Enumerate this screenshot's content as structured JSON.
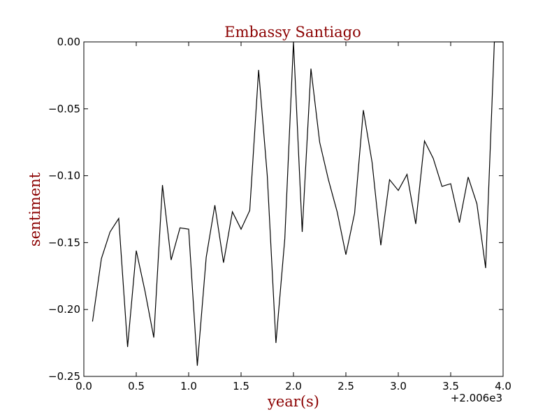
{
  "chart_data": {
    "type": "line",
    "title": "Embassy Santiago",
    "xlabel": "year(s)",
    "ylabel": "sentiment",
    "x_offset_label": "+2.006e3",
    "xlim": [
      0.0,
      4.0
    ],
    "ylim": [
      -0.25,
      0.0
    ],
    "x_ticks": [
      0.0,
      0.5,
      1.0,
      1.5,
      2.0,
      2.5,
      3.0,
      3.5,
      4.0
    ],
    "x_tick_labels": [
      "0.0",
      "0.5",
      "1.0",
      "1.5",
      "2.0",
      "2.5",
      "3.0",
      "3.5",
      "4.0"
    ],
    "y_ticks": [
      0.0,
      -0.05,
      -0.1,
      -0.15,
      -0.2,
      -0.25
    ],
    "y_tick_labels": [
      "0.00",
      "−0.05",
      "−0.10",
      "−0.15",
      "−0.20",
      "−0.25"
    ],
    "grid": false,
    "line_color": "#000000",
    "series": [
      {
        "x": [
          0.083,
          0.167,
          0.25,
          0.333,
          0.417,
          0.5,
          0.583,
          0.667,
          0.75,
          0.833,
          0.917,
          1.0,
          1.083,
          1.167,
          1.25,
          1.333,
          1.417,
          1.5,
          1.583,
          1.667,
          1.75,
          1.833,
          1.917,
          2.0,
          2.083,
          2.167,
          2.25,
          2.333,
          2.417,
          2.5,
          2.583,
          2.667,
          2.75,
          2.833,
          2.917,
          3.0,
          3.083,
          3.167,
          3.25,
          3.333,
          3.417,
          3.5,
          3.583,
          3.667,
          3.75,
          3.833,
          3.917,
          4.0
        ],
        "y": [
          -0.209,
          -0.162,
          -0.142,
          -0.132,
          -0.228,
          -0.156,
          -0.186,
          -0.221,
          -0.107,
          -0.163,
          -0.139,
          -0.14,
          -0.242,
          -0.161,
          -0.122,
          -0.165,
          -0.127,
          -0.14,
          -0.126,
          -0.021,
          -0.1,
          -0.225,
          -0.147,
          0.0,
          -0.142,
          -0.02,
          -0.075,
          -0.103,
          -0.127,
          -0.159,
          -0.128,
          -0.051,
          -0.09,
          -0.152,
          -0.103,
          -0.111,
          -0.099,
          -0.136,
          -0.074,
          -0.087,
          -0.108,
          -0.106,
          -0.135,
          -0.101,
          -0.121,
          -0.169,
          0.0,
          0.0
        ]
      }
    ]
  }
}
